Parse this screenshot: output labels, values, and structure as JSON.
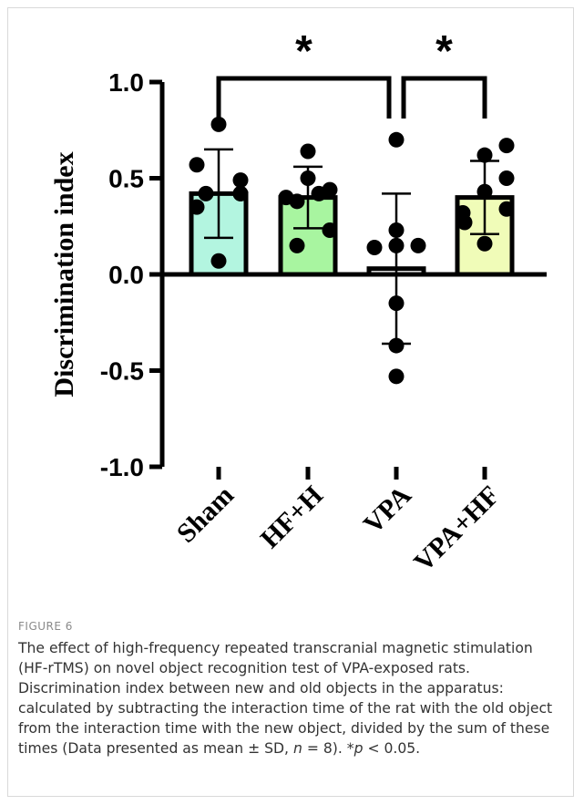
{
  "chart_data": {
    "type": "bar",
    "ylabel": "Discrimination index",
    "ylim": [
      -1.0,
      1.0
    ],
    "yticks": [
      "1.0",
      "0.5",
      "0.0",
      "-0.5",
      "-1.0"
    ],
    "ytick_values": [
      1.0,
      0.5,
      0.0,
      -0.5,
      -1.0
    ],
    "categories": [
      "Sham",
      "HF+H",
      "VPA",
      "VPA+HF"
    ],
    "values": [
      0.42,
      0.4,
      0.03,
      0.4
    ],
    "sd": [
      0.23,
      0.16,
      0.39,
      0.19
    ],
    "bar_colors": [
      "#b3f5e0",
      "#a8f5a0",
      "#ffffff",
      "#f0fcb8"
    ],
    "points": [
      [
        0.78,
        0.57,
        0.35,
        0.49,
        0.42,
        0.07,
        0.42,
        0.42
      ],
      [
        0.64,
        0.5,
        0.4,
        0.42,
        0.44,
        0.38,
        0.23,
        0.15
      ],
      [
        0.7,
        0.23,
        0.15,
        0.15,
        0.14,
        -0.15,
        -0.37,
        -0.53
      ],
      [
        0.67,
        0.62,
        0.5,
        0.43,
        0.32,
        0.34,
        0.27,
        0.16
      ]
    ],
    "significance": [
      {
        "from": "Sham",
        "to": "VPA",
        "label": "*"
      },
      {
        "from": "VPA",
        "to": "VPA+HF",
        "label": "*"
      }
    ]
  },
  "caption": {
    "figure_label": "FIGURE 6",
    "text_1": "The effect of high-frequency repeated transcranial magnetic stimulation (HF-rTMS) on novel object recognition test of VPA-exposed rats. Discrimination index between new and old objects in the apparatus: calculated by subtracting the interaction time of the rat with the old object from the interaction time with the new object, divided by the sum of these times (Data presented as mean ± SD, ",
    "n_var": "n",
    "text_2": " = 8). *",
    "p_var": "p",
    "text_3": " < 0.05."
  }
}
